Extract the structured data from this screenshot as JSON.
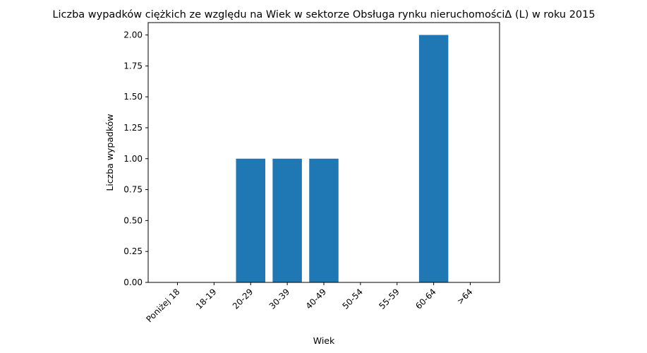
{
  "chart_data": {
    "type": "bar",
    "title": "Liczba wypadków ciężkich ze względu na Wiek w sektorze  Obsługa rynku nieruchomościΔ  (L) w roku 2015",
    "xlabel": "Wiek",
    "ylabel": "Liczba wypadków",
    "categories": [
      "Poniżej 18",
      "18-19",
      "20-29",
      "30-39",
      "40-49",
      "50-54",
      "55-59",
      "60-64",
      ">64"
    ],
    "values": [
      0,
      0,
      1,
      1,
      1,
      0,
      0,
      2,
      0
    ],
    "ylim": [
      0,
      2.1
    ],
    "yticks": [
      "0.00",
      "0.25",
      "0.50",
      "0.75",
      "1.00",
      "1.25",
      "1.50",
      "1.75",
      "2.00"
    ],
    "bar_color": "#1f77b4",
    "grid": false,
    "legend": "none"
  }
}
